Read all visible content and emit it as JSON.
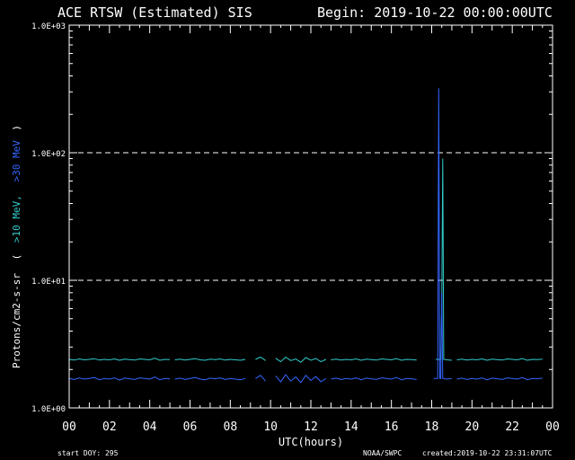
{
  "header": {
    "title": "ACE RTSW (Estimated) SIS",
    "begin": "Begin: 2019-10-22 00:00:00UTC"
  },
  "footer": {
    "start_doy": "start DOY:  295",
    "source": "NOAA/SWPC",
    "created": "created:2019-10-22 23:31:07UTC"
  },
  "ylabel": {
    "main": "Protons/cm2-s-sr",
    "open": "(",
    "s10": ">10 MeV,",
    "s30": ">30 MeV",
    "close": ")"
  },
  "colors": {
    "s10": "#33cccc",
    "s30": "#3366ff",
    "s30_spike": "#2244ff",
    "frame": "#ffffff",
    "grid": "#ffffff"
  },
  "chart_data": {
    "type": "line",
    "xlabel": "UTC(hours)",
    "x_range": [
      0,
      24
    ],
    "y_range": [
      1,
      1000
    ],
    "y_scale": "log",
    "x_ticks": [
      "00",
      "02",
      "04",
      "06",
      "08",
      "10",
      "12",
      "14",
      "16",
      "18",
      "20",
      "22",
      "00"
    ],
    "y_ticks": [
      "1.0E+00",
      "1.0E+01",
      "1.0E+02",
      "1.0E+03"
    ],
    "grid": "dashed lines at 1.0E+01 and 1.0E+02",
    "series": [
      {
        "name": ">10 MeV",
        "segments": [
          {
            "x": [
              0.0,
              0.25,
              0.5,
              0.75,
              1.0,
              1.25,
              1.5,
              1.75,
              2.0,
              2.25,
              2.5,
              2.75,
              3.0,
              3.25,
              3.5,
              3.75,
              4.0,
              4.25,
              4.5,
              4.75,
              5.0
            ],
            "y": [
              2.4,
              2.37,
              2.42,
              2.38,
              2.4,
              2.43,
              2.37,
              2.4,
              2.38,
              2.42,
              2.36,
              2.41,
              2.39,
              2.37,
              2.42,
              2.4,
              2.38,
              2.45,
              2.36,
              2.4,
              2.39
            ]
          },
          {
            "x": [
              5.25,
              5.5,
              5.75,
              6.0,
              6.25,
              6.5,
              6.75,
              7.0,
              7.25,
              7.5,
              7.75,
              8.0,
              8.25,
              8.5,
              8.75
            ],
            "y": [
              2.38,
              2.41,
              2.37,
              2.4,
              2.43,
              2.38,
              2.36,
              2.41,
              2.39,
              2.42,
              2.37,
              2.4,
              2.38,
              2.36,
              2.4
            ]
          },
          {
            "x": [
              9.25,
              9.5,
              9.75
            ],
            "y": [
              2.4,
              2.5,
              2.35
            ]
          },
          {
            "x": [
              10.25,
              10.5,
              10.75,
              11.0,
              11.25,
              11.5,
              11.75,
              12.0,
              12.25,
              12.5,
              12.75
            ],
            "y": [
              2.45,
              2.3,
              2.5,
              2.35,
              2.42,
              2.28,
              2.48,
              2.36,
              2.44,
              2.3,
              2.4
            ]
          },
          {
            "x": [
              13.0,
              13.25,
              13.5,
              13.75,
              14.0,
              14.25,
              14.5,
              14.75,
              15.0,
              15.25,
              15.5,
              15.75,
              16.0,
              16.25,
              16.5,
              16.75,
              17.0,
              17.25
            ],
            "y": [
              2.38,
              2.41,
              2.37,
              2.4,
              2.38,
              2.42,
              2.36,
              2.41,
              2.39,
              2.37,
              2.42,
              2.4,
              2.38,
              2.43,
              2.36,
              2.4,
              2.39,
              2.37
            ]
          },
          {
            "x": [
              18.2,
              18.45,
              18.5,
              18.55,
              18.6,
              18.75,
              19.0
            ],
            "y": [
              2.4,
              2.4,
              6.5,
              90,
              2.4,
              2.38,
              2.36
            ]
          },
          {
            "x": [
              19.25,
              19.5,
              19.75,
              20.0,
              20.25,
              20.5,
              20.75,
              21.0,
              21.25,
              21.5,
              21.75,
              22.0,
              22.25,
              22.5,
              22.75,
              23.0,
              23.25,
              23.5
            ],
            "y": [
              2.38,
              2.41,
              2.37,
              2.4,
              2.38,
              2.42,
              2.36,
              2.41,
              2.39,
              2.37,
              2.42,
              2.4,
              2.38,
              2.43,
              2.36,
              2.4,
              2.39,
              2.41
            ]
          }
        ]
      },
      {
        "name": ">30 MeV",
        "segments": [
          {
            "x": [
              0.0,
              0.25,
              0.5,
              0.75,
              1.0,
              1.25,
              1.5,
              1.75,
              2.0,
              2.25,
              2.5,
              2.75,
              3.0,
              3.25,
              3.5,
              3.75,
              4.0,
              4.25,
              4.5,
              4.75,
              5.0
            ],
            "y": [
              1.7,
              1.67,
              1.72,
              1.68,
              1.7,
              1.73,
              1.66,
              1.7,
              1.68,
              1.72,
              1.65,
              1.71,
              1.69,
              1.67,
              1.72,
              1.7,
              1.68,
              1.75,
              1.66,
              1.7,
              1.69
            ]
          },
          {
            "x": [
              5.25,
              5.5,
              5.75,
              6.0,
              6.25,
              6.5,
              6.75,
              7.0,
              7.25,
              7.5,
              7.75,
              8.0,
              8.25,
              8.5,
              8.75
            ],
            "y": [
              1.68,
              1.71,
              1.67,
              1.7,
              1.73,
              1.68,
              1.66,
              1.71,
              1.69,
              1.72,
              1.67,
              1.7,
              1.68,
              1.66,
              1.7
            ]
          },
          {
            "x": [
              9.25,
              9.5,
              9.75
            ],
            "y": [
              1.7,
              1.8,
              1.62
            ]
          },
          {
            "x": [
              10.25,
              10.5,
              10.75,
              11.0,
              11.25,
              11.5,
              11.75,
              12.0,
              12.25,
              12.5,
              12.75
            ],
            "y": [
              1.78,
              1.6,
              1.82,
              1.62,
              1.75,
              1.58,
              1.8,
              1.64,
              1.76,
              1.6,
              1.7
            ]
          },
          {
            "x": [
              13.0,
              13.25,
              13.5,
              13.75,
              14.0,
              14.25,
              14.5,
              14.75,
              15.0,
              15.25,
              15.5,
              15.75,
              16.0,
              16.25,
              16.5,
              16.75,
              17.0,
              17.25
            ],
            "y": [
              1.68,
              1.71,
              1.67,
              1.7,
              1.68,
              1.72,
              1.66,
              1.71,
              1.69,
              1.67,
              1.72,
              1.7,
              1.68,
              1.73,
              1.66,
              1.7,
              1.69,
              1.67
            ]
          },
          {
            "x": [
              18.1,
              18.3,
              18.35,
              18.4,
              18.45,
              18.5,
              18.55,
              18.6,
              18.75,
              19.0
            ],
            "y": [
              1.7,
              1.7,
              320,
              1.7,
              1.7,
              8.0,
              1.7,
              1.7,
              1.68,
              1.7
            ]
          },
          {
            "x": [
              19.25,
              19.5,
              19.75,
              20.0,
              20.25,
              20.5,
              20.75,
              21.0,
              21.25,
              21.5,
              21.75,
              22.0,
              22.25,
              22.5,
              22.75,
              23.0,
              23.25,
              23.5
            ],
            "y": [
              1.68,
              1.71,
              1.67,
              1.7,
              1.68,
              1.72,
              1.66,
              1.71,
              1.69,
              1.67,
              1.72,
              1.7,
              1.68,
              1.73,
              1.66,
              1.7,
              1.69,
              1.71
            ]
          }
        ]
      }
    ]
  }
}
